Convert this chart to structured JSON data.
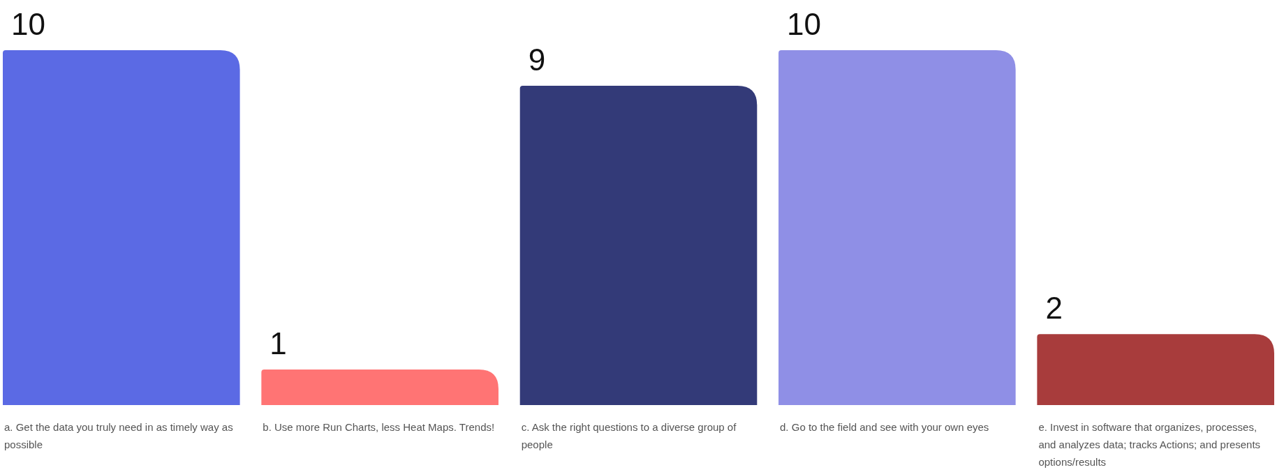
{
  "chart_data": {
    "type": "bar",
    "categories": [
      "a. Get the data you truly need in as timely way as possible",
      "b. Use more Run Charts, less Heat Maps. Trends!",
      "c. Ask the right questions to a diverse group of people",
      "d. Go to the field and see with your own eyes",
      "e. Invest in software that organizes, processes, and analyzes data; tracks Actions; and presents options/results"
    ],
    "values": [
      10,
      1,
      9,
      10,
      2
    ],
    "colors": [
      "#5b6ae4",
      "#ff7474",
      "#333a78",
      "#8f8fe6",
      "#a83c3c"
    ],
    "data_labels": true
  }
}
